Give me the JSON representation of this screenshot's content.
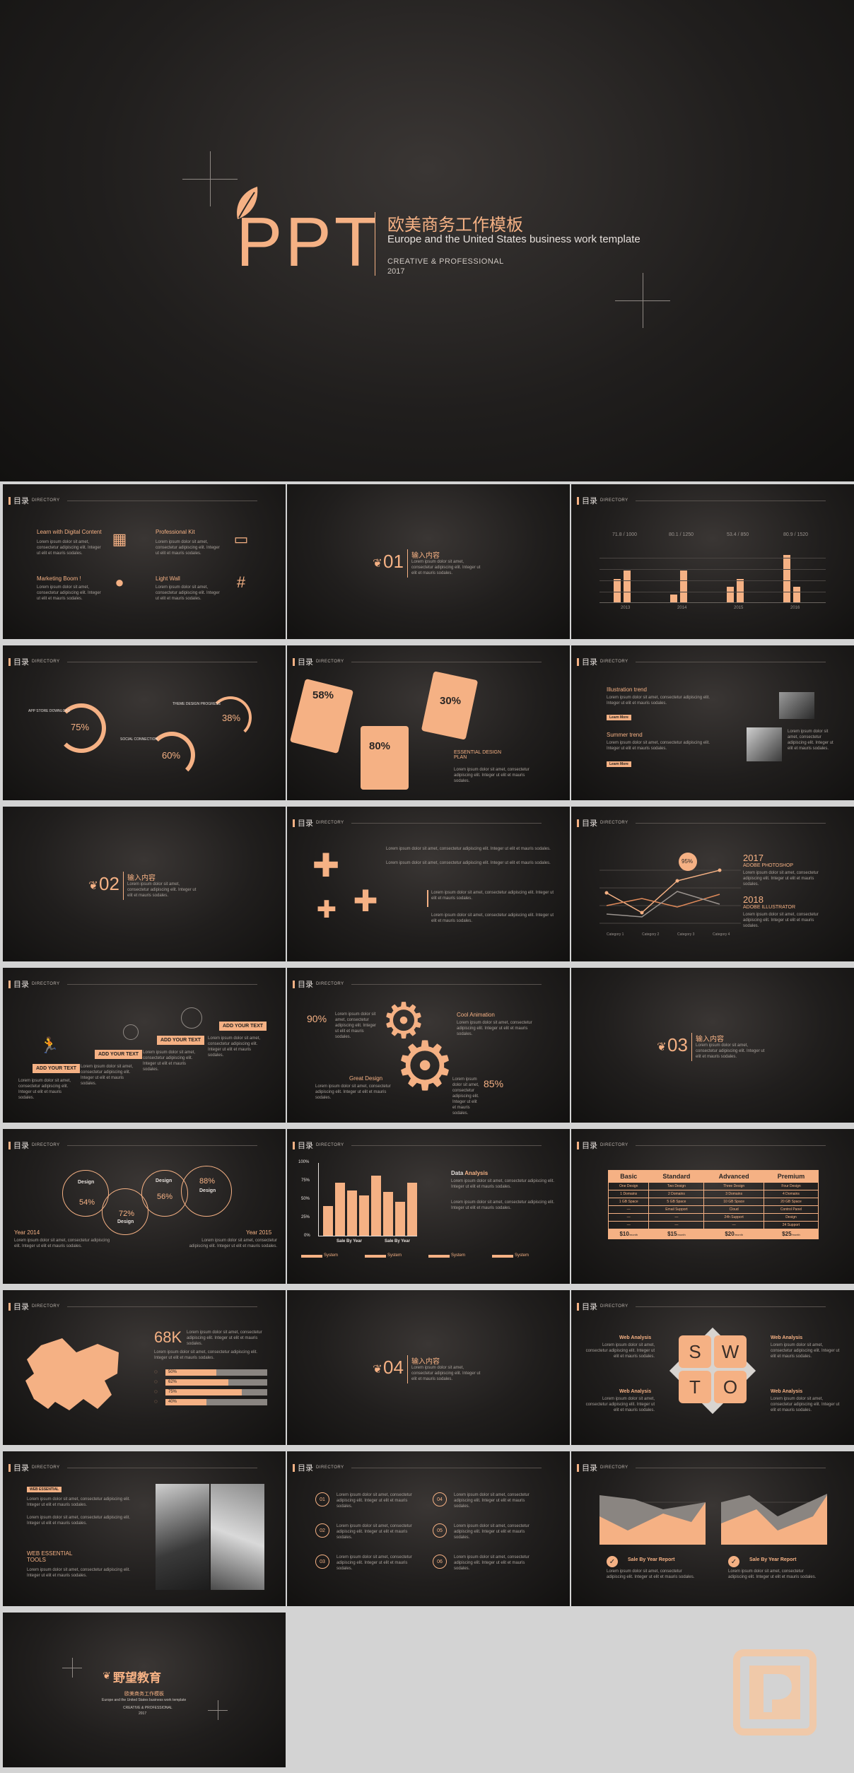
{
  "title_slide": {
    "big": "PPT",
    "cn_title": "欧美商务工作模板",
    "en_title": "Europe and the United States business work template",
    "tag": "CREATIVE  & PROFESSIONAL",
    "year": "2017"
  },
  "common": {
    "dir_cn": "目录",
    "dir_en": "DIRECTORY",
    "input_cn": "输入内容",
    "body": "Lorem ipsum dolor sit amet, consectetur adipiscing elit. Integer ut elit et mauris sodales."
  },
  "s1": {
    "items": [
      "Learn with Digital Content",
      "Professional Kit",
      "Marketing Boom !",
      "Light Wall"
    ]
  },
  "s2": {
    "num": "01"
  },
  "s3": {
    "heads": [
      "71.8 / 1000",
      "80.1 / 1250",
      "53.4 / 850",
      "80.9 / 1520"
    ],
    "years": [
      "2013",
      "2014",
      "2015",
      "2016"
    ],
    "values": [
      3,
      4,
      1,
      4,
      2,
      3,
      6,
      2
    ]
  },
  "s4": {
    "pcts": [
      "75%",
      "60%",
      "38%"
    ],
    "labels": [
      "APP STORE DOWNLOAD",
      "SOCIAL CONNECTION",
      "THEME DESIGN PROGRESS"
    ]
  },
  "s5": {
    "pcts": [
      "58%",
      "30%",
      "80%"
    ],
    "head": "ESSENTIAL DESIGN PLAN"
  },
  "s6": {
    "t1": "Illustration trend",
    "t2": "Summer trend",
    "b1": "Learn More",
    "b2": "Learn More"
  },
  "s7": {
    "num": "02"
  },
  "s9": {
    "badge": "95%",
    "y1": "2017",
    "y1sub": "ADOBE PHOTOSHOP",
    "y2": "2018",
    "y2sub": "ADOBE ILLUSTRATOR",
    "cats": [
      "Category 1",
      "Category 2",
      "Category 3",
      "Category 4"
    ]
  },
  "s10": {
    "btn": "ADD YOUR TEXT"
  },
  "s11": {
    "p1": "90%",
    "p2": "85%",
    "h1": "Cool Animation",
    "h2": "Great Design"
  },
  "s12": {
    "num": "03"
  },
  "s13": {
    "labels": [
      "Design",
      "Design",
      "Design",
      "Design"
    ],
    "pcts": [
      "54%",
      "72%",
      "56%",
      "88%"
    ],
    "y1": "Year 2014",
    "y2": "Year 2015"
  },
  "s14": {
    "yaxis": [
      "100%",
      "75%",
      "50%",
      "25%",
      "0%"
    ],
    "x1": "Sale By Year",
    "x2": "Sale By Year",
    "head1": "Data ",
    "head2": "Analysis",
    "sys": "System",
    "vals": [
      40,
      72,
      62,
      55,
      82,
      60,
      46,
      72
    ]
  },
  "s15": {
    "cols": [
      "Basic",
      "Standard",
      "Advanced",
      "Premium"
    ],
    "rows": [
      [
        "One Design",
        "Two Design",
        "Three Design",
        "Four Design"
      ],
      [
        "1 Domains",
        "2 Domains",
        "3 Domains",
        "4 Domains"
      ],
      [
        "1 GB Space",
        "5 GB Space",
        "10 GB Space",
        "20 GB Space"
      ],
      [
        "—",
        "Email Support",
        "Cloud",
        "Control Panel"
      ],
      [
        "—",
        "—",
        "24h Support",
        "Design"
      ],
      [
        "—",
        "—",
        "—",
        "24 Support"
      ]
    ],
    "prices": [
      "$10",
      "$15",
      "$20",
      "$25"
    ],
    "per": "/month"
  },
  "s16": {
    "big": "68K",
    "bars": [
      "50%",
      "62%",
      "75%",
      "40%"
    ],
    "levels": [
      0.5,
      0.62,
      0.75,
      0.4
    ]
  },
  "s17": {
    "num": "04"
  },
  "s18": {
    "letters": [
      "S",
      "W",
      "T",
      "O"
    ],
    "label": "Web Analysis"
  },
  "s19": {
    "tag": "WEB ESSENTIAL",
    "head": "WEB ESSENTIAL TOOLS"
  },
  "s20": {
    "nums": [
      "01",
      "02",
      "03",
      "04",
      "05",
      "06"
    ]
  },
  "s21": {
    "label": "Sale By Year Report"
  },
  "end": {
    "brand": "野望教育",
    "cn": "欧美商务工作模板",
    "en": "Europe and the United States business work template",
    "tag": "CREATIVE & PROFESSIONAL",
    "year": "2017"
  }
}
